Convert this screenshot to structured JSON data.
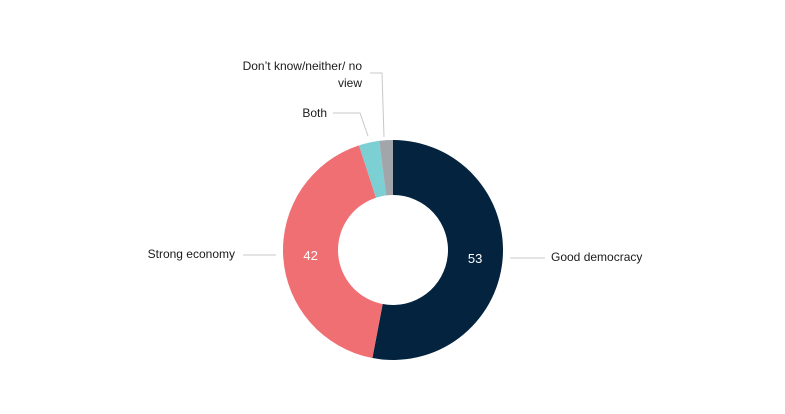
{
  "chart_data": {
    "type": "donut",
    "categories": [
      "Good democracy",
      "Strong economy",
      "Both",
      "Don’t know/neither/ no view"
    ],
    "values": [
      53,
      42,
      3,
      2
    ],
    "colors": [
      "#04233f",
      "#f06f73",
      "#7ccfd2",
      "#a2a6ab"
    ]
  }
}
